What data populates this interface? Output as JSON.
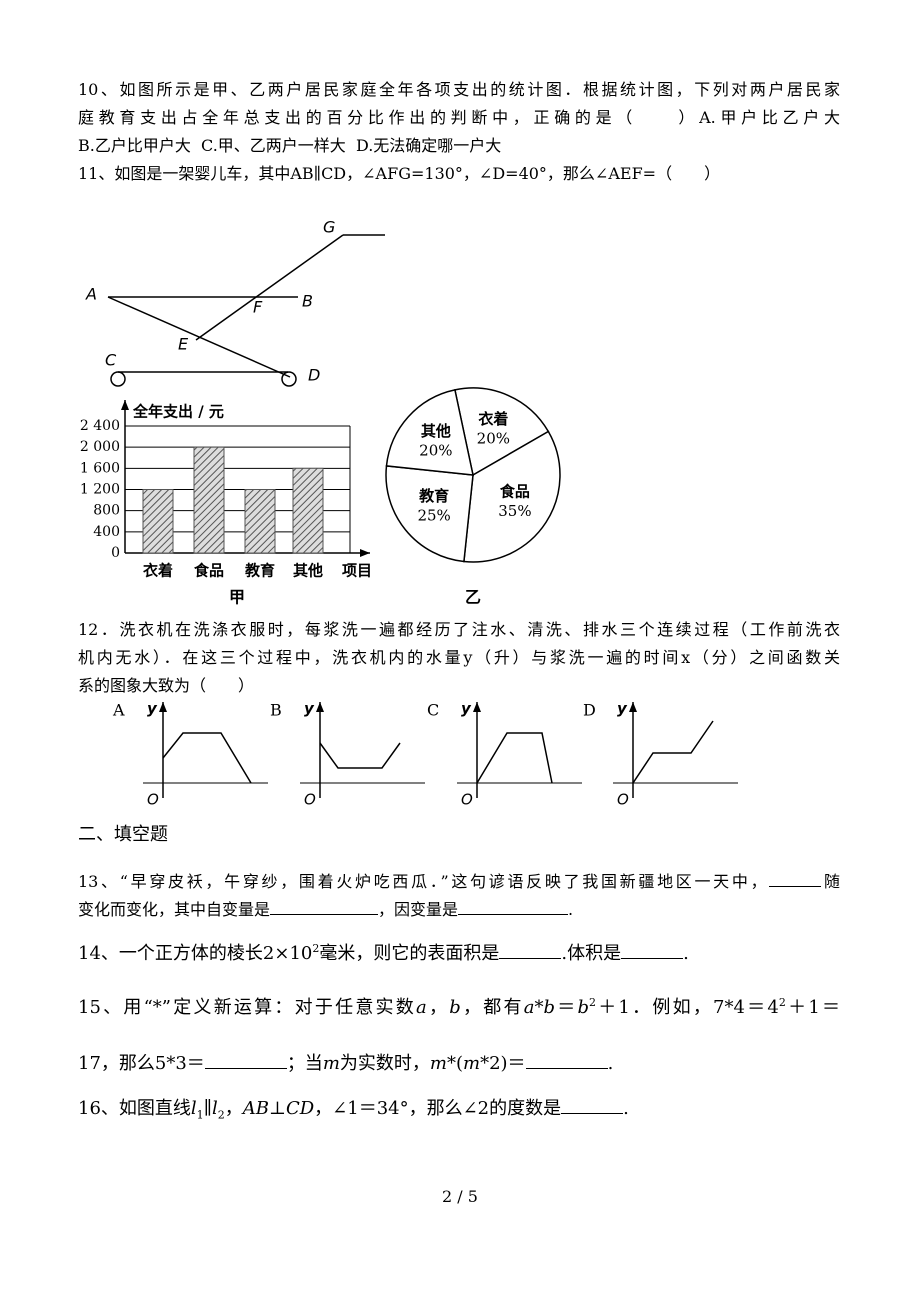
{
  "q10": {
    "lines": [
      "10、如图所示是甲、乙两户居民家庭全年各项支出的统计图．根据统计图，下列对两户居民家",
      "庭教育支出占全年总支出的百分比作出的判断中，正确的是（　　）A.甲户比乙户大",
      "B.乙户比甲户大  C.甲、乙两户一样大  D.无法确定哪一户大"
    ]
  },
  "q11": {
    "text": "11、如图是一架婴儿车，其中AB∥CD，∠AFG=130°，∠D=40°，那么∠AEF=（　　）",
    "labels": {
      "A": "A",
      "B": "B",
      "C": "C",
      "D": "D",
      "E": "E",
      "F": "F",
      "G": "G"
    }
  },
  "chart_data": [
    {
      "type": "bar",
      "title": "全年支出 / 元",
      "categories": [
        "衣着",
        "食品",
        "教育",
        "其他"
      ],
      "values": [
        1200,
        2000,
        1200,
        1600
      ],
      "x_label": "项目",
      "caption": "甲",
      "color": "#555555",
      "ylim": [
        0,
        2400
      ],
      "yticks": [
        0,
        400,
        800,
        {
          "value": 1200,
          "label": "1 200"
        },
        {
          "value": 1600,
          "label": "1 600"
        },
        {
          "value": 2000,
          "label": "2 000"
        },
        {
          "value": 2400,
          "label": "2 400"
        }
      ],
      "grid": true
    },
    {
      "type": "pie",
      "categories": [
        "衣着",
        "食品",
        "教育",
        "其他"
      ],
      "values": [
        20,
        35,
        25,
        20
      ],
      "value_labels": [
        "20%",
        "35%",
        "25%",
        "20%"
      ],
      "caption": "乙"
    }
  ],
  "q12": {
    "lines": [
      "12．洗衣机在洗涤衣服时，每浆洗一遍都经历了注水、清洗、排水三个连续过程（工作前洗衣",
      "机内无水）．在这三个过程中，洗衣机内的水量y（升）与浆洗一遍的时间x（分）之间函数关",
      "系的图象大致为（　　）"
    ],
    "options": [
      "A",
      "B",
      "C",
      "D"
    ],
    "axis_y": "y",
    "origin": "O"
  },
  "section": "二、填空题",
  "q13": {
    "parts": [
      "13、“早穿皮袄，午穿纱，围着火炉吃西瓜．”这句谚语反映了我国新疆地区一天中，",
      "随",
      "变化而变化，其中自变量是",
      "，因变量是",
      "."
    ]
  },
  "q14": {
    "parts": [
      "14、一个正方体的棱长2×10",
      "2",
      "毫米，则它的表面积是",
      ".体积是",
      "."
    ]
  },
  "q15": {
    "line1": [
      "15、用“*”定义新运算：对于任意实数",
      "a",
      "，",
      "b",
      "，都有",
      "a",
      "*",
      "b",
      "＝",
      "b",
      "2",
      "＋1．例如，7*4＝4",
      "2",
      "＋1＝"
    ],
    "line2": [
      "17，那么5*3＝",
      "；当",
      "m",
      "为实数时，",
      "m",
      "*(",
      "m",
      "*2)＝",
      "."
    ]
  },
  "q16": {
    "parts": [
      "16、如图直线",
      "l",
      "1",
      "∥",
      "l",
      "2",
      "，",
      "AB",
      "⊥",
      "CD",
      "，∠1＝34°，那么∠2的度数是",
      "."
    ]
  },
  "page_number": "2 / 5"
}
